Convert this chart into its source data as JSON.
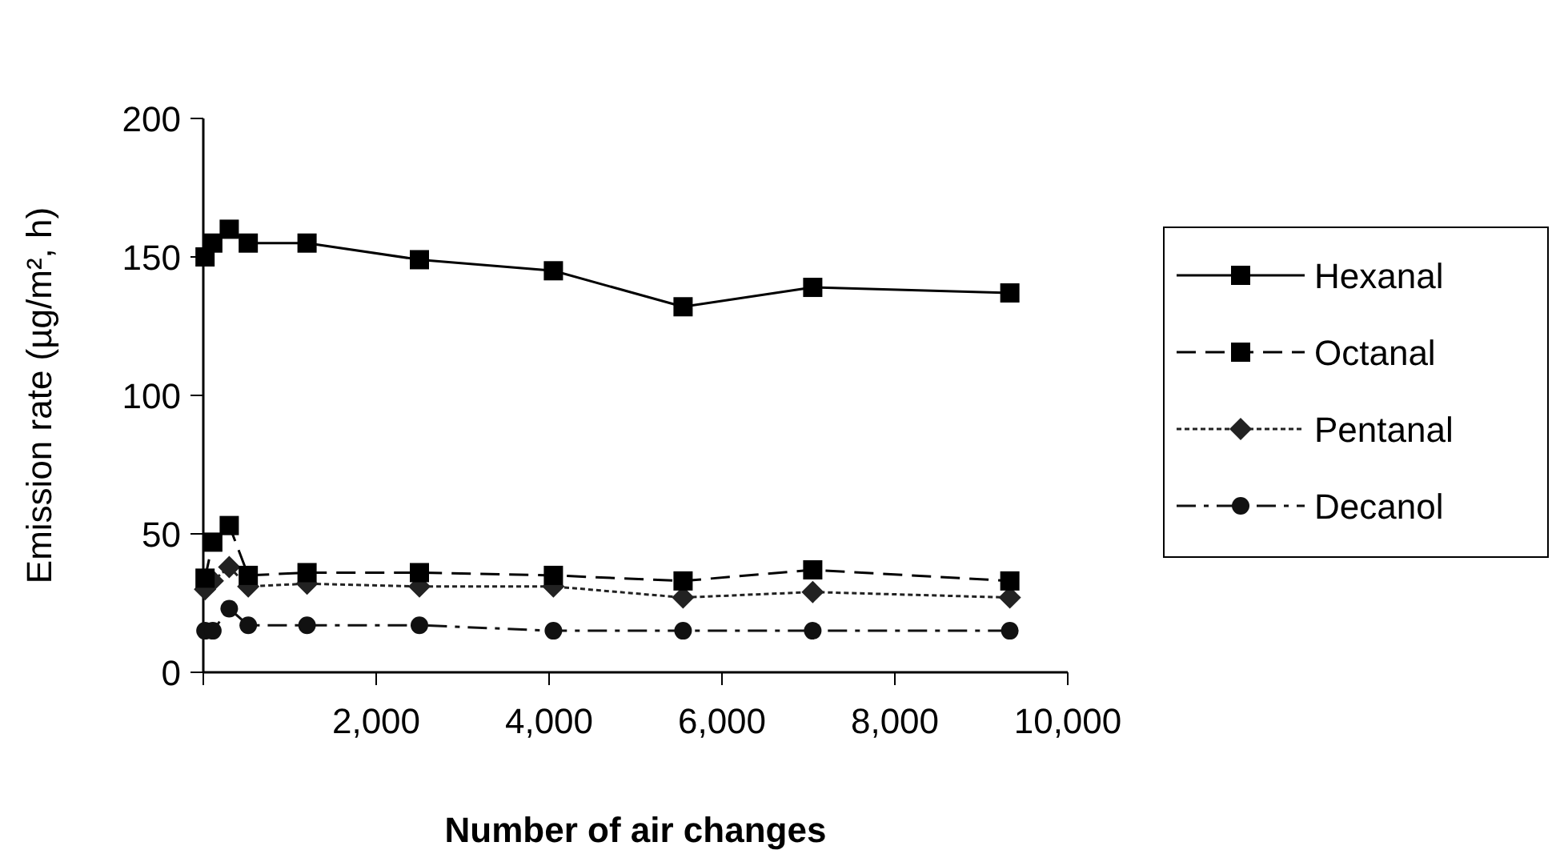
{
  "chart_data": {
    "type": "line",
    "xlabel": "Number of air changes",
    "ylabel": "Emission rate (µg/m², h)",
    "x": [
      20,
      110,
      300,
      520,
      1200,
      2500,
      4050,
      5550,
      7050,
      9330
    ],
    "series": [
      {
        "name": "Hexanal",
        "color": "#000000",
        "marker": "square",
        "line_style": "solid",
        "values": [
          150,
          155,
          160,
          155,
          155,
          149,
          145,
          132,
          139,
          137
        ]
      },
      {
        "name": "Octanal",
        "color": "#000000",
        "marker": "square",
        "line_style": "dashed",
        "values": [
          34,
          47,
          53,
          35,
          36,
          36,
          35,
          33,
          37,
          33
        ]
      },
      {
        "name": "Pentanal",
        "color": "#222222",
        "marker": "diamond",
        "line_style": "dotted",
        "values": [
          30,
          33,
          38,
          31,
          32,
          31,
          31,
          27,
          29,
          27
        ]
      },
      {
        "name": "Decanol",
        "color": "#111111",
        "marker": "circle",
        "line_style": "dashdot",
        "values": [
          15,
          15,
          23,
          17,
          17,
          17,
          15,
          15,
          15,
          15
        ]
      }
    ],
    "xlim": [
      0,
      10000
    ],
    "xticks": [
      {
        "value": 0,
        "label": null
      },
      {
        "value": 2000,
        "label": "2,000"
      },
      {
        "value": 4000,
        "label": "4,000"
      },
      {
        "value": 6000,
        "label": "6,000"
      },
      {
        "value": 8000,
        "label": "8,000"
      },
      {
        "value": 10000,
        "label": "10,000"
      }
    ],
    "ylim": [
      0,
      200
    ],
    "yticks": [
      0,
      50,
      100,
      150,
      200
    ],
    "grid": false,
    "legend": "right"
  }
}
